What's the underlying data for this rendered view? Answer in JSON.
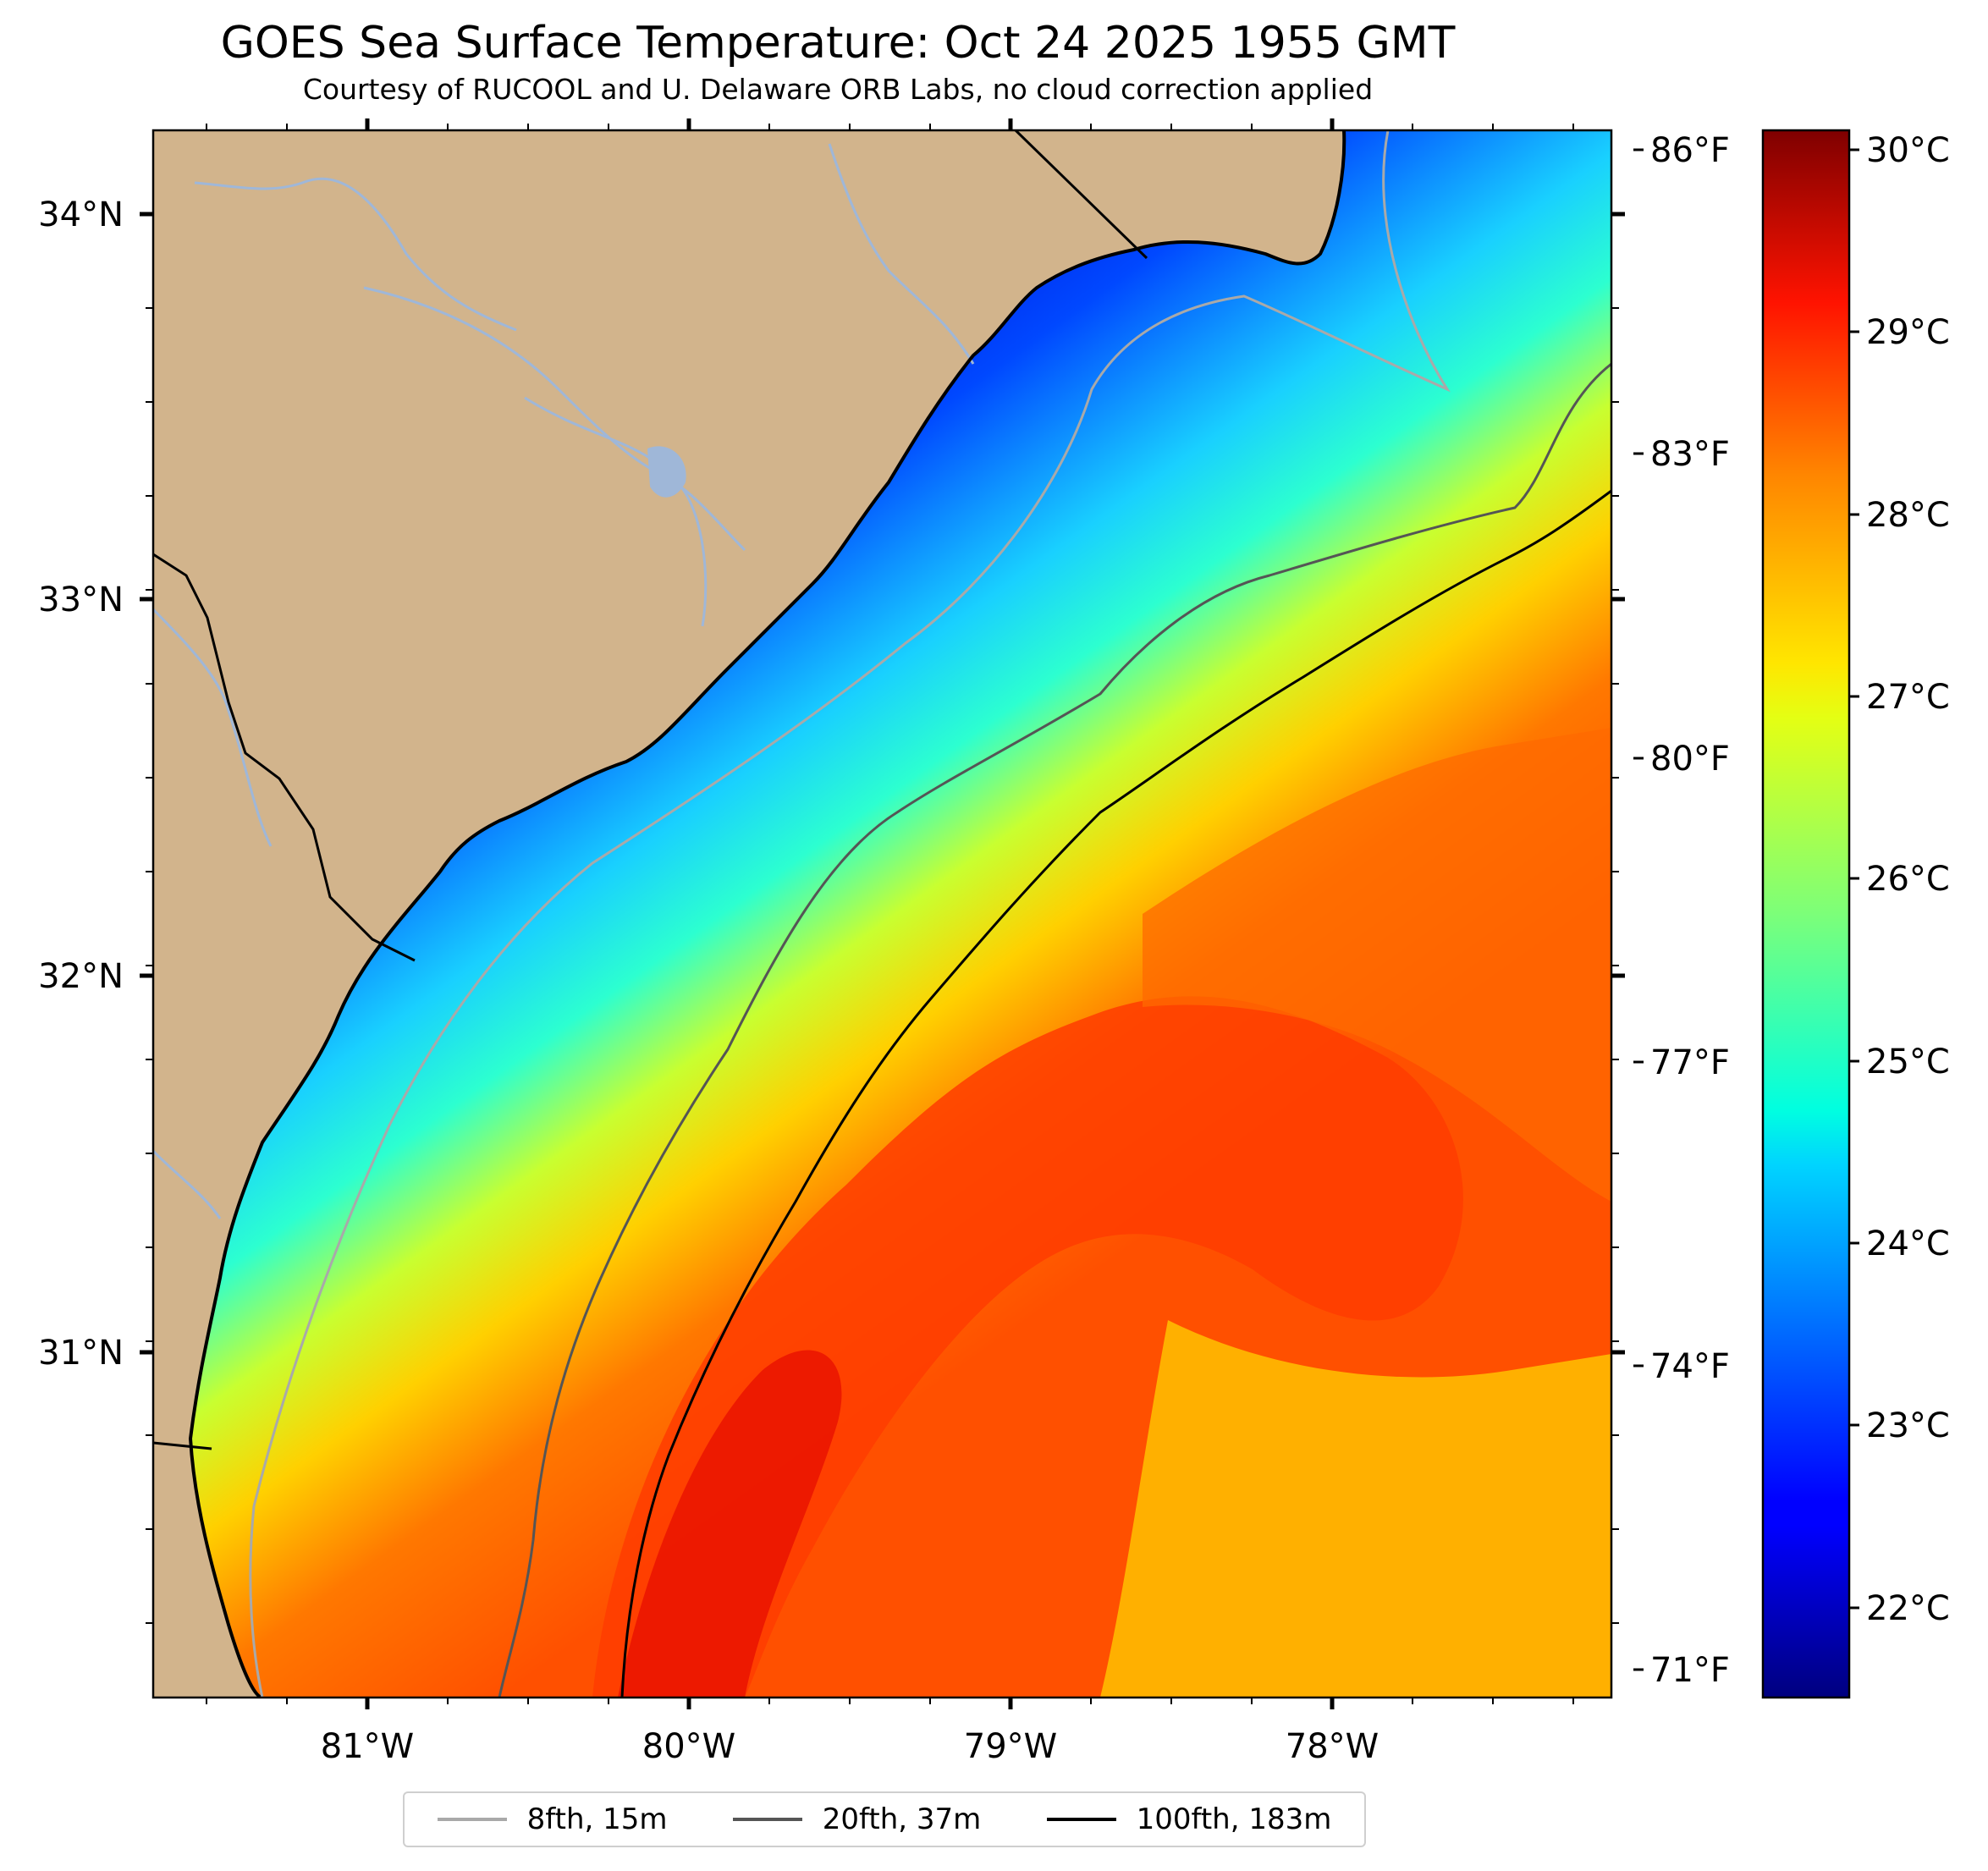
{
  "title": "GOES Sea Surface Temperature: Oct 24 2025 1955 GMT",
  "subtitle": "Courtesy of RUCOOL and U. Delaware ORB Labs, no cloud correction applied",
  "map": {
    "extent": {
      "lon_min": -81.67,
      "lon_max": -77.1,
      "lat_min": 30.08,
      "lat_max": 34.22
    },
    "land_color": "#d2b48c",
    "river_color": "#9fb7d8",
    "coastline_color": "#000000",
    "lat_labels": [
      "34°N",
      "33°N",
      "32°N",
      "31°N"
    ],
    "lon_labels": [
      "81°W",
      "80°W",
      "79°W",
      "78°W"
    ]
  },
  "fahrenheit_axis": {
    "labels": [
      "86°F",
      "83°F",
      "80°F",
      "77°F",
      "74°F",
      "71°F"
    ],
    "values": [
      86,
      83,
      80,
      77,
      74,
      71
    ]
  },
  "colorbar": {
    "colormap": "jet",
    "min_c": 21.5,
    "max_c": 30.1,
    "labels": [
      "30°C",
      "29°C",
      "28°C",
      "27°C",
      "26°C",
      "25°C",
      "24°C",
      "23°C",
      "22°C"
    ],
    "values": [
      30,
      29,
      28,
      27,
      26,
      25,
      24,
      23,
      22
    ]
  },
  "legend": [
    {
      "label": "8fth, 15m",
      "color": "#a9a9a9"
    },
    {
      "label": "20fth, 37m",
      "color": "#555555"
    },
    {
      "label": "100fth, 183m",
      "color": "#000000"
    }
  ]
}
